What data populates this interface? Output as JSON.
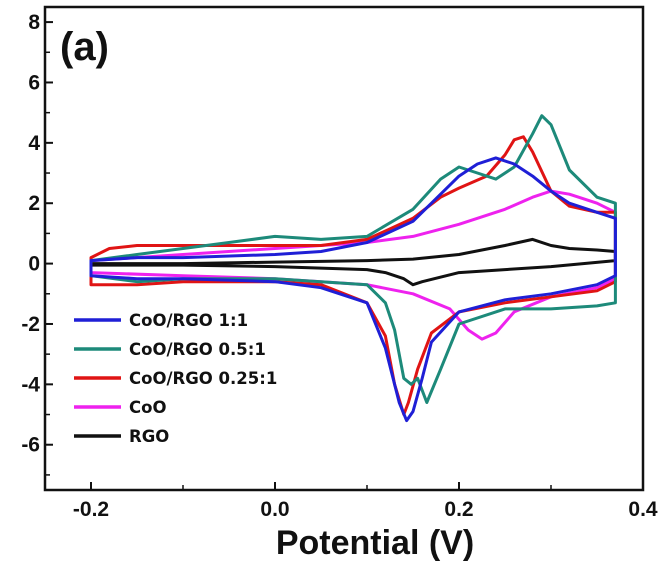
{
  "chart_data": {
    "type": "line",
    "panel_label": "(a)",
    "xlabel": "Potential (V)",
    "ylabel": "",
    "xlim": [
      -0.25,
      0.4
    ],
    "ylim": [
      -7.5,
      8.5
    ],
    "x_ticks": [
      -0.2,
      0.0,
      0.2,
      0.4
    ],
    "x_tick_labels": [
      "-0.2",
      "0.0",
      "0.2",
      "0.4"
    ],
    "y_ticks": [
      -6,
      -4,
      -2,
      0,
      2,
      4,
      6,
      8
    ],
    "y_tick_labels": [
      "-6",
      "-4",
      "-2",
      "0",
      "2",
      "4",
      "6",
      "8"
    ],
    "grid": false,
    "legend_position": "bottom-left",
    "series": [
      {
        "name": "CoO/RGO 1:1",
        "color": "#1f1fd6",
        "x": [
          -0.2,
          -0.15,
          -0.1,
          0.0,
          0.05,
          0.1,
          0.15,
          0.18,
          0.2,
          0.22,
          0.24,
          0.26,
          0.28,
          0.3,
          0.32,
          0.35,
          0.37,
          0.37,
          0.35,
          0.3,
          0.25,
          0.2,
          0.17,
          0.16,
          0.15,
          0.143,
          0.135,
          0.12,
          0.1,
          0.05,
          0.0,
          -0.1,
          -0.15,
          -0.2
        ],
        "y": [
          0.1,
          0.2,
          0.2,
          0.3,
          0.4,
          0.7,
          1.4,
          2.3,
          2.9,
          3.3,
          3.5,
          3.3,
          2.9,
          2.4,
          2.0,
          1.7,
          1.5,
          -0.4,
          -0.7,
          -1.0,
          -1.2,
          -1.6,
          -2.6,
          -3.8,
          -4.9,
          -5.2,
          -4.6,
          -2.8,
          -1.3,
          -0.8,
          -0.6,
          -0.5,
          -0.5,
          -0.4
        ]
      },
      {
        "name": "CoO/RGO 0.5:1",
        "color": "#1d8a7a",
        "x": [
          -0.2,
          -0.15,
          -0.1,
          -0.05,
          0.0,
          0.05,
          0.1,
          0.15,
          0.18,
          0.2,
          0.22,
          0.24,
          0.26,
          0.28,
          0.29,
          0.3,
          0.32,
          0.35,
          0.37,
          0.37,
          0.35,
          0.3,
          0.25,
          0.2,
          0.18,
          0.165,
          0.155,
          0.148,
          0.14,
          0.13,
          0.12,
          0.1,
          0.05,
          0.0,
          -0.1,
          -0.15,
          -0.2
        ],
        "y": [
          0.1,
          0.3,
          0.5,
          0.7,
          0.9,
          0.8,
          0.9,
          1.8,
          2.8,
          3.2,
          3.0,
          2.8,
          3.2,
          4.3,
          4.9,
          4.6,
          3.1,
          2.2,
          2.0,
          -1.3,
          -1.4,
          -1.5,
          -1.5,
          -2.0,
          -3.5,
          -4.6,
          -3.8,
          -4.0,
          -3.8,
          -2.2,
          -1.3,
          -0.7,
          -0.6,
          -0.5,
          -0.5,
          -0.6,
          -0.4
        ]
      },
      {
        "name": "CoO/RGO 0.25:1",
        "color": "#e01414",
        "x": [
          -0.2,
          -0.18,
          -0.15,
          -0.1,
          0.0,
          0.05,
          0.1,
          0.15,
          0.18,
          0.2,
          0.23,
          0.25,
          0.26,
          0.27,
          0.28,
          0.3,
          0.32,
          0.35,
          0.37,
          0.37,
          0.35,
          0.3,
          0.25,
          0.2,
          0.17,
          0.155,
          0.145,
          0.14,
          0.13,
          0.12,
          0.1,
          0.05,
          0.0,
          -0.1,
          -0.15,
          -0.2
        ],
        "y": [
          0.2,
          0.5,
          0.6,
          0.6,
          0.6,
          0.6,
          0.8,
          1.5,
          2.2,
          2.5,
          2.9,
          3.6,
          4.1,
          4.2,
          3.7,
          2.4,
          1.9,
          1.7,
          1.7,
          -0.6,
          -0.9,
          -1.1,
          -1.3,
          -1.6,
          -2.3,
          -3.5,
          -4.6,
          -5.0,
          -4.0,
          -2.4,
          -1.3,
          -0.7,
          -0.6,
          -0.6,
          -0.7,
          -0.7
        ]
      },
      {
        "name": "CoO",
        "color": "#ee22ee",
        "x": [
          -0.2,
          -0.1,
          0.0,
          0.1,
          0.15,
          0.2,
          0.25,
          0.28,
          0.3,
          0.32,
          0.35,
          0.37,
          0.37,
          0.35,
          0.3,
          0.26,
          0.24,
          0.225,
          0.21,
          0.19,
          0.15,
          0.1,
          0.0,
          -0.1,
          -0.2
        ],
        "y": [
          0.1,
          0.3,
          0.5,
          0.7,
          0.9,
          1.3,
          1.8,
          2.2,
          2.4,
          2.3,
          2.0,
          1.7,
          -0.5,
          -0.8,
          -1.1,
          -1.6,
          -2.3,
          -2.5,
          -2.2,
          -1.5,
          -1.0,
          -0.7,
          -0.5,
          -0.4,
          -0.3
        ]
      },
      {
        "name": "RGO",
        "color": "#111111",
        "x": [
          -0.2,
          -0.1,
          0.0,
          0.1,
          0.15,
          0.2,
          0.25,
          0.28,
          0.3,
          0.32,
          0.35,
          0.37,
          0.37,
          0.3,
          0.25,
          0.2,
          0.16,
          0.15,
          0.14,
          0.12,
          0.1,
          0.0,
          -0.1,
          -0.2
        ],
        "y": [
          0.0,
          0.0,
          0.05,
          0.1,
          0.15,
          0.3,
          0.6,
          0.8,
          0.6,
          0.5,
          0.45,
          0.4,
          0.1,
          -0.1,
          -0.2,
          -0.3,
          -0.6,
          -0.7,
          -0.5,
          -0.3,
          -0.2,
          -0.1,
          -0.05,
          -0.05
        ]
      }
    ]
  }
}
